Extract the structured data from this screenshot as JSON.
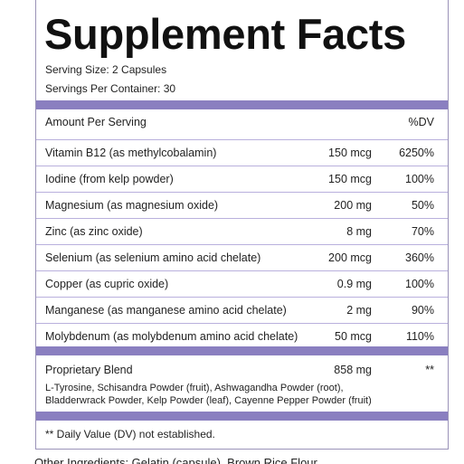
{
  "header": {
    "title": "Supplement Facts"
  },
  "serving": {
    "size": "Serving Size: 2 Capsules",
    "per_container": "Servings Per Container: 30"
  },
  "table": {
    "header": [
      "Amount Per Serving",
      "%DV"
    ],
    "rows": [
      [
        "Vitamin B12 (as methylcobalamin)",
        "150 mcg",
        "6250%"
      ],
      [
        "Iodine (from kelp powder)",
        "150 mcg",
        "100%"
      ],
      [
        "Magnesium (as magnesium oxide)",
        "200 mg",
        "50%"
      ],
      [
        "Zinc (as zinc oxide)",
        "8 mg",
        "70%"
      ],
      [
        "Selenium (as selenium amino acid chelate)",
        "200 mcg",
        "360%"
      ],
      [
        "Copper (as cupric oxide)",
        "0.9 mg",
        "100%"
      ],
      [
        "Manganese (as manganese amino acid chelate)",
        "2 mg",
        "90%"
      ],
      [
        "Molybdenum (as molybdenum amino acid chelate)",
        "50 mcg",
        "110%"
      ]
    ]
  },
  "blend": {
    "name": "Proprietary Blend",
    "amount": "858 mg",
    "dv": "**",
    "ingredients": [
      "L-Tyrosine, Schisandra Powder (fruit), Ashwagandha Powder (root),",
      "Bladderwrack Powder, Kelp Powder (leaf), Cayenne Pepper Powder (fruit)"
    ]
  },
  "footnote": "** Daily Value (DV) not established.",
  "other_ingredients": "Other Ingredients: Gelatin (capsule), Brown Rice Flour"
}
